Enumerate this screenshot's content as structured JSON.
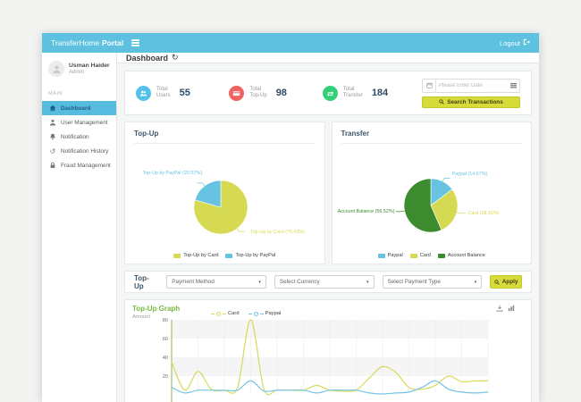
{
  "topbar": {
    "brand_light": "TransferHome",
    "brand_bold": "Portal",
    "logout_label": "Logout"
  },
  "sidebar": {
    "user": {
      "name": "Usman Haider",
      "role": "Admin"
    },
    "section_label": "MAIN",
    "items": [
      {
        "label": "Dashboard",
        "icon": "home-icon",
        "active": true
      },
      {
        "label": "User Management",
        "icon": "user-icon",
        "active": false
      },
      {
        "label": "Notification",
        "icon": "bell-icon",
        "active": false
      },
      {
        "label": "Notification History",
        "icon": "history-icon",
        "active": false
      },
      {
        "label": "Fraud Management",
        "icon": "lock-icon",
        "active": false
      }
    ]
  },
  "header": {
    "title": "Dashboard"
  },
  "stats": {
    "cards": [
      {
        "label_top": "Total",
        "label_bottom": "Users",
        "value": "55",
        "color": "#55c1e9",
        "icon": "users-icon"
      },
      {
        "label_top": "Total",
        "label_bottom": "Top-Up",
        "value": "98",
        "color": "#ef6262",
        "icon": "credit-card-icon"
      },
      {
        "label_top": "Total",
        "label_bottom": "Transfer",
        "value": "184",
        "color": "#33d077",
        "icon": "transfer-icon"
      }
    ],
    "date_placeholder": "Please Enter Date",
    "search_button": "Search Transactions"
  },
  "filter": {
    "title": "Top-Up",
    "selects": [
      "Payment Method",
      "Select Currency",
      "Select Payment Type"
    ],
    "apply_button": "Apply"
  },
  "chart_data": [
    {
      "type": "pie",
      "title": "Top-Up",
      "slices": [
        {
          "name": "Top-Up by Card",
          "value": 79.43,
          "color": "#d6da52",
          "label": "Top-Up by Card (79.43%)"
        },
        {
          "name": "Top-Up by PayPal",
          "value": 20.57,
          "color": "#68c3e3",
          "label": "Top-Up by PayPal (20.57%)"
        }
      ],
      "legend": [
        "Top-Up by Card",
        "Top-Up by PayPal"
      ],
      "legend_position": "bottom"
    },
    {
      "type": "pie",
      "title": "Transfer",
      "slices": [
        {
          "name": "Paypal",
          "value": 14.67,
          "color": "#68c3e3",
          "label": "Paypal (14.67%)"
        },
        {
          "name": "Card",
          "value": 28.81,
          "color": "#d6da52",
          "label": "Card (28.81%)"
        },
        {
          "name": "Account Balance",
          "value": 56.52,
          "color": "#3c8c2f",
          "label": "Account Balance (56.52%)"
        }
      ],
      "legend": [
        "Paypal",
        "Card",
        "Account Balance"
      ],
      "legend_position": "bottom"
    },
    {
      "type": "line",
      "title": "Top-Up Graph",
      "ylabel": "Amount",
      "ylim": [
        0,
        80
      ],
      "yticks": [
        80,
        60,
        40,
        20
      ],
      "grid": "alternate-bands",
      "legend_position": "top",
      "series": [
        {
          "name": "Card",
          "color": "#d9d95c",
          "values": [
            35,
            5,
            25,
            6,
            5,
            8,
            80,
            6,
            5,
            5,
            5,
            10,
            5,
            4,
            5,
            18,
            30,
            24,
            8,
            6,
            10,
            20,
            14,
            15,
            15
          ]
        },
        {
          "name": "Paypal",
          "color": "#74c4e4",
          "values": [
            8,
            2,
            5,
            5,
            5,
            5,
            15,
            4,
            5,
            5,
            5,
            2,
            5,
            5,
            5,
            2,
            1,
            2,
            3,
            8,
            15,
            6,
            3,
            2,
            3
          ]
        }
      ]
    }
  ]
}
